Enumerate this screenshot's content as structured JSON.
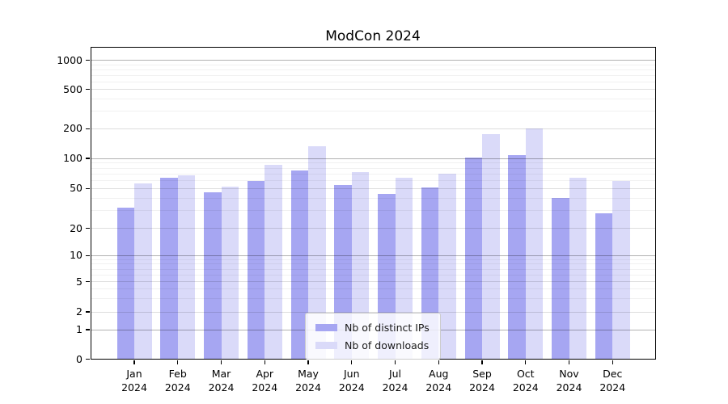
{
  "title": "ModCon 2024",
  "chart_data": {
    "type": "bar",
    "title": "ModCon 2024",
    "categories": [
      "Jan",
      "Feb",
      "Mar",
      "Apr",
      "May",
      "Jun",
      "Jul",
      "Aug",
      "Sep",
      "Oct",
      "Nov",
      "Dec"
    ],
    "category_year": "2024",
    "series": [
      {
        "name": "Nb of distinct IPs",
        "color": "#a6a6f2",
        "values": [
          32,
          63,
          45,
          59,
          75,
          54,
          44,
          51,
          101,
          108,
          40,
          28
        ]
      },
      {
        "name": "Nb of downloads",
        "color": "#dadaf9",
        "values": [
          56,
          67,
          52,
          85,
          133,
          72,
          63,
          70,
          176,
          200,
          63,
          59
        ]
      }
    ],
    "yticks": [
      0,
      1,
      2,
      5,
      10,
      20,
      50,
      100,
      200,
      500,
      1000
    ],
    "yscale": "symlog (linear 0-1, logarithmic above 1)",
    "ylim": [
      0,
      1300
    ],
    "xlabel": "",
    "ylabel": "",
    "grid": "horizontal, major and minor log gridlines",
    "legend_position": "lower center"
  }
}
